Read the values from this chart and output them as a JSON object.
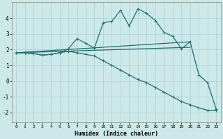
{
  "xlabel": "Humidex (Indice chaleur)",
  "bg_color": "#cce8e8",
  "line_color": "#1a7070",
  "grid_color": "#aad0d0",
  "xlim": [
    -0.5,
    23.5
  ],
  "ylim": [
    -2.6,
    5.0
  ],
  "xticks": [
    0,
    1,
    2,
    3,
    4,
    5,
    6,
    7,
    8,
    9,
    10,
    11,
    12,
    13,
    14,
    15,
    16,
    17,
    18,
    19,
    20,
    21,
    22,
    23
  ],
  "yticks": [
    -2,
    -1,
    0,
    1,
    2,
    3,
    4
  ],
  "lines": [
    {
      "x": [
        0,
        1,
        2,
        3,
        4,
        5,
        6,
        7,
        8,
        9,
        10,
        11,
        12,
        13,
        14,
        15,
        16,
        17,
        18,
        19,
        20,
        21,
        22,
        23
      ],
      "y": [
        1.8,
        1.8,
        1.75,
        1.65,
        1.7,
        1.8,
        2.05,
        2.7,
        2.4,
        2.1,
        3.7,
        3.8,
        4.5,
        3.5,
        4.6,
        4.3,
        3.85,
        3.1,
        2.85,
        2.05,
        2.5,
        0.4,
        -0.1,
        -1.8
      ],
      "marker": "+",
      "lw": 0.9
    },
    {
      "x": [
        0,
        20
      ],
      "y": [
        1.8,
        2.5
      ],
      "marker": null,
      "lw": 0.9
    },
    {
      "x": [
        0,
        20
      ],
      "y": [
        1.8,
        2.15
      ],
      "marker": null,
      "lw": 0.9
    },
    {
      "x": [
        0,
        1,
        2,
        3,
        4,
        5,
        6,
        7,
        8,
        9,
        10,
        11,
        12,
        13,
        14,
        15,
        16,
        17,
        18,
        19,
        20,
        21,
        22,
        23
      ],
      "y": [
        1.8,
        1.8,
        1.75,
        1.65,
        1.7,
        1.8,
        1.9,
        1.8,
        1.7,
        1.6,
        1.3,
        1.0,
        0.7,
        0.4,
        0.1,
        -0.1,
        -0.4,
        -0.7,
        -1.0,
        -1.3,
        -1.5,
        -1.7,
        -1.85,
        -1.85
      ],
      "marker": "+",
      "lw": 0.9
    }
  ]
}
